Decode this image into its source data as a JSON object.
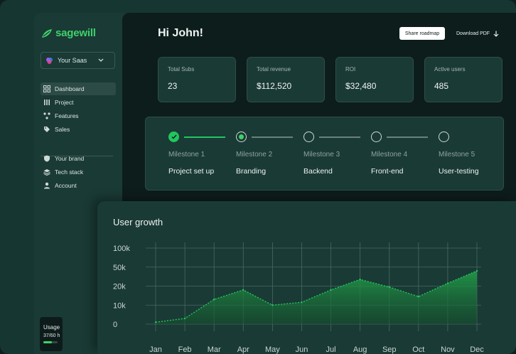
{
  "brand": {
    "name": "sagewill",
    "accent": "#3fd16b"
  },
  "workspace": {
    "name": "Your Saas"
  },
  "nav_main": [
    {
      "label": "Dashboard",
      "icon": "grid-icon",
      "active": true
    },
    {
      "label": "Project",
      "icon": "columns-icon"
    },
    {
      "label": "Features",
      "icon": "nodes-icon"
    },
    {
      "label": "Sales",
      "icon": "tag-icon"
    }
  ],
  "nav_secondary": [
    {
      "label": "Your brand",
      "icon": "shield-icon"
    },
    {
      "label": "Tech stack",
      "icon": "layers-icon"
    },
    {
      "label": "Account",
      "icon": "user-icon"
    }
  ],
  "usage": {
    "title": "Usage",
    "value": "37/60 h",
    "progress": 0.62
  },
  "header": {
    "greeting": "Hi John!",
    "share_label": "Share roadmap",
    "download_label": "Download PDF"
  },
  "stats": [
    {
      "label": "Total Subs",
      "value": "23"
    },
    {
      "label": "Total revenue",
      "value": "$112,520"
    },
    {
      "label": "ROI",
      "value": "$32,480"
    },
    {
      "label": "Active users",
      "value": "485"
    }
  ],
  "milestones": [
    {
      "label": "Milestone 1",
      "name": "Project set up",
      "status": "done"
    },
    {
      "label": "Milestone 2",
      "name": "Branding",
      "status": "current"
    },
    {
      "label": "Milestone 3",
      "name": "Backend",
      "status": "todo"
    },
    {
      "label": "Milestone 4",
      "name": "Front-end",
      "status": "todo"
    },
    {
      "label": "Milestone 5",
      "name": "User-testing",
      "status": "todo"
    }
  ],
  "chart_data": {
    "type": "area",
    "title": "User growth",
    "categories": [
      "Jan",
      "Feb",
      "Mar",
      "Apr",
      "May",
      "Jun",
      "Jul",
      "Aug",
      "Sep",
      "Oct",
      "Nov",
      "Dec"
    ],
    "y_tick_labels": [
      "0",
      "10k",
      "20k",
      "50k",
      "100k"
    ],
    "y_tick_values": [
      0,
      1,
      2,
      3,
      4
    ],
    "values": [
      0.1,
      0.3,
      1.3,
      1.8,
      1.0,
      1.15,
      1.8,
      2.35,
      1.95,
      1.45,
      2.15,
      2.8
    ],
    "series": [
      {
        "values": [
          0.1,
          0.3,
          1.3,
          1.8,
          1.0,
          1.15,
          1.8,
          2.35,
          1.95,
          1.45,
          2.15,
          2.8
        ]
      }
    ],
    "ylim": [
      0,
      4
    ],
    "grid": true,
    "line_color": "#22c55e",
    "fill_color": "#1f7a3a"
  }
}
